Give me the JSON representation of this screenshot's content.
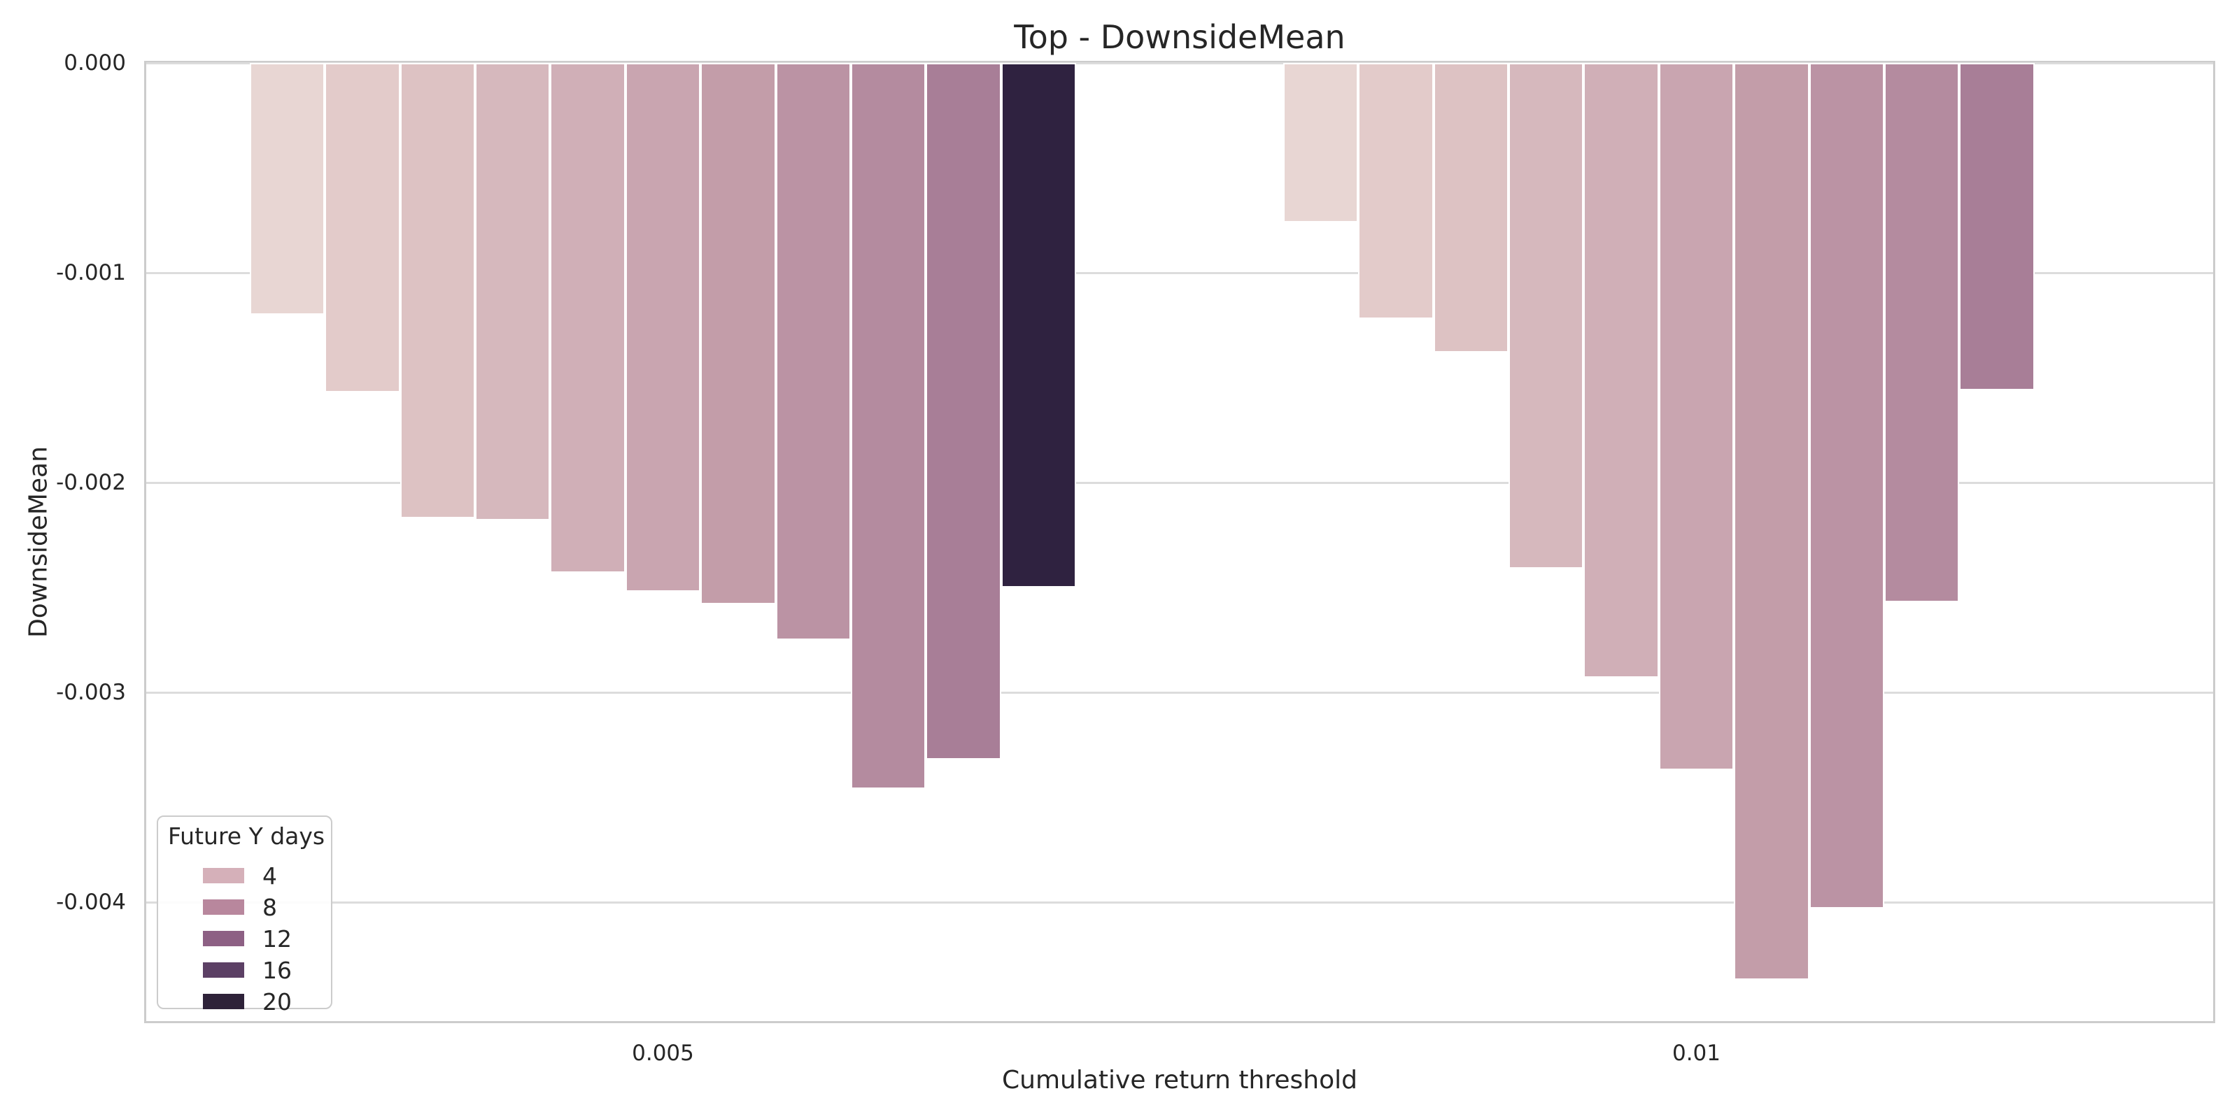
{
  "chart_data": {
    "type": "bar",
    "title": "Top - DownsideMean",
    "xlabel": "Cumulative return threshold",
    "ylabel": "DownsideMean",
    "x_tick_labels": [
      "0.005",
      "0.01"
    ],
    "y_tick_labels": [
      "0.000",
      "-0.001",
      "-0.002",
      "-0.003",
      "-0.004"
    ],
    "y_tick_values": [
      0,
      -0.001,
      -0.002,
      -0.003,
      -0.004
    ],
    "ylim": [
      -0.004567,
      0
    ],
    "grid": true,
    "legend": {
      "title": "Future Y days",
      "position": "lower left",
      "entries": [
        {
          "label": "4",
          "color": "#d5b0b9"
        },
        {
          "label": "8",
          "color": "#b8879d"
        },
        {
          "label": "12",
          "color": "#8d6084"
        },
        {
          "label": "16",
          "color": "#5c4065"
        },
        {
          "label": "20",
          "color": "#2e2239"
        }
      ]
    },
    "groups": [
      {
        "category": "0.005",
        "bars": [
          {
            "value": -0.0012,
            "color": "#e8d6d3"
          },
          {
            "value": -0.00157,
            "color": "#e3cbca"
          },
          {
            "value": -0.00217,
            "color": "#ddc2c3"
          },
          {
            "value": -0.00218,
            "color": "#d6b8bd"
          },
          {
            "value": -0.00243,
            "color": "#d0afb7"
          },
          {
            "value": -0.00252,
            "color": "#c9a5b0"
          },
          {
            "value": -0.00258,
            "color": "#c39da9"
          },
          {
            "value": -0.00275,
            "color": "#bb93a4"
          },
          {
            "value": -0.00346,
            "color": "#b48b9f"
          },
          {
            "value": -0.00332,
            "color": "#a87e97"
          },
          {
            "value": -0.0025,
            "color": "#2f2240"
          }
        ]
      },
      {
        "category": "0.01",
        "bars": [
          {
            "value": -0.00076,
            "color": "#e8d6d3"
          },
          {
            "value": -0.00122,
            "color": "#e3cbca"
          },
          {
            "value": -0.00138,
            "color": "#ddc2c3"
          },
          {
            "value": -0.00241,
            "color": "#d6b8bd"
          },
          {
            "value": -0.00293,
            "color": "#d0afb7"
          },
          {
            "value": -0.00337,
            "color": "#c9a5b0"
          },
          {
            "value": -0.00437,
            "color": "#c39da9"
          },
          {
            "value": -0.00403,
            "color": "#bb93a4"
          },
          {
            "value": -0.00257,
            "color": "#b48b9f"
          },
          {
            "value": -0.00156,
            "color": "#a87e97"
          }
        ]
      }
    ],
    "colors": {
      "background": "#ffffff",
      "text": "#262626",
      "gridline": "#dcdcdc",
      "spine": "#cccccc",
      "bar_edge": "#ffffff"
    }
  }
}
